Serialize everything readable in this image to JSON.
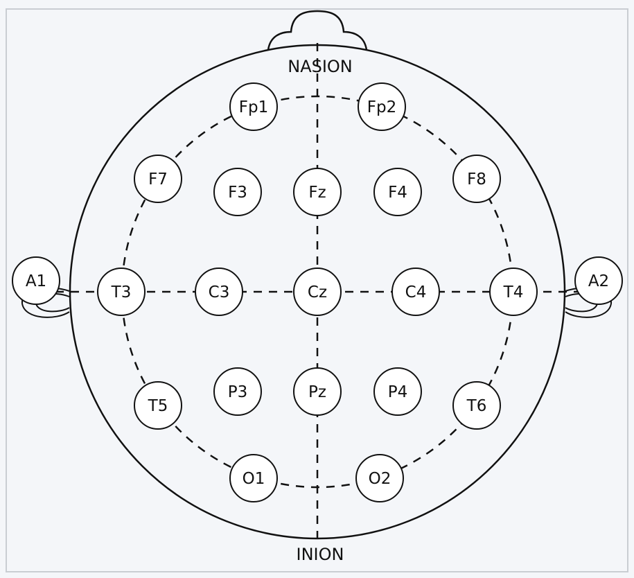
{
  "diagram": {
    "labels": {
      "nasion": "NASION",
      "inion": "INION"
    },
    "electrodes": [
      {
        "id": "fp1",
        "label": "Fp1"
      },
      {
        "id": "fp2",
        "label": "Fp2"
      },
      {
        "id": "f7",
        "label": "F7"
      },
      {
        "id": "f3",
        "label": "F3"
      },
      {
        "id": "fz",
        "label": "Fz"
      },
      {
        "id": "f4",
        "label": "F4"
      },
      {
        "id": "f8",
        "label": "F8"
      },
      {
        "id": "a1",
        "label": "A1"
      },
      {
        "id": "t3",
        "label": "T3"
      },
      {
        "id": "c3",
        "label": "C3"
      },
      {
        "id": "cz",
        "label": "Cz"
      },
      {
        "id": "c4",
        "label": "C4"
      },
      {
        "id": "t4",
        "label": "T4"
      },
      {
        "id": "a2",
        "label": "A2"
      },
      {
        "id": "t5",
        "label": "T5"
      },
      {
        "id": "p3",
        "label": "P3"
      },
      {
        "id": "pz",
        "label": "Pz"
      },
      {
        "id": "p4",
        "label": "P4"
      },
      {
        "id": "t6",
        "label": "T6"
      },
      {
        "id": "o1",
        "label": "O1"
      },
      {
        "id": "o2",
        "label": "O2"
      }
    ]
  }
}
